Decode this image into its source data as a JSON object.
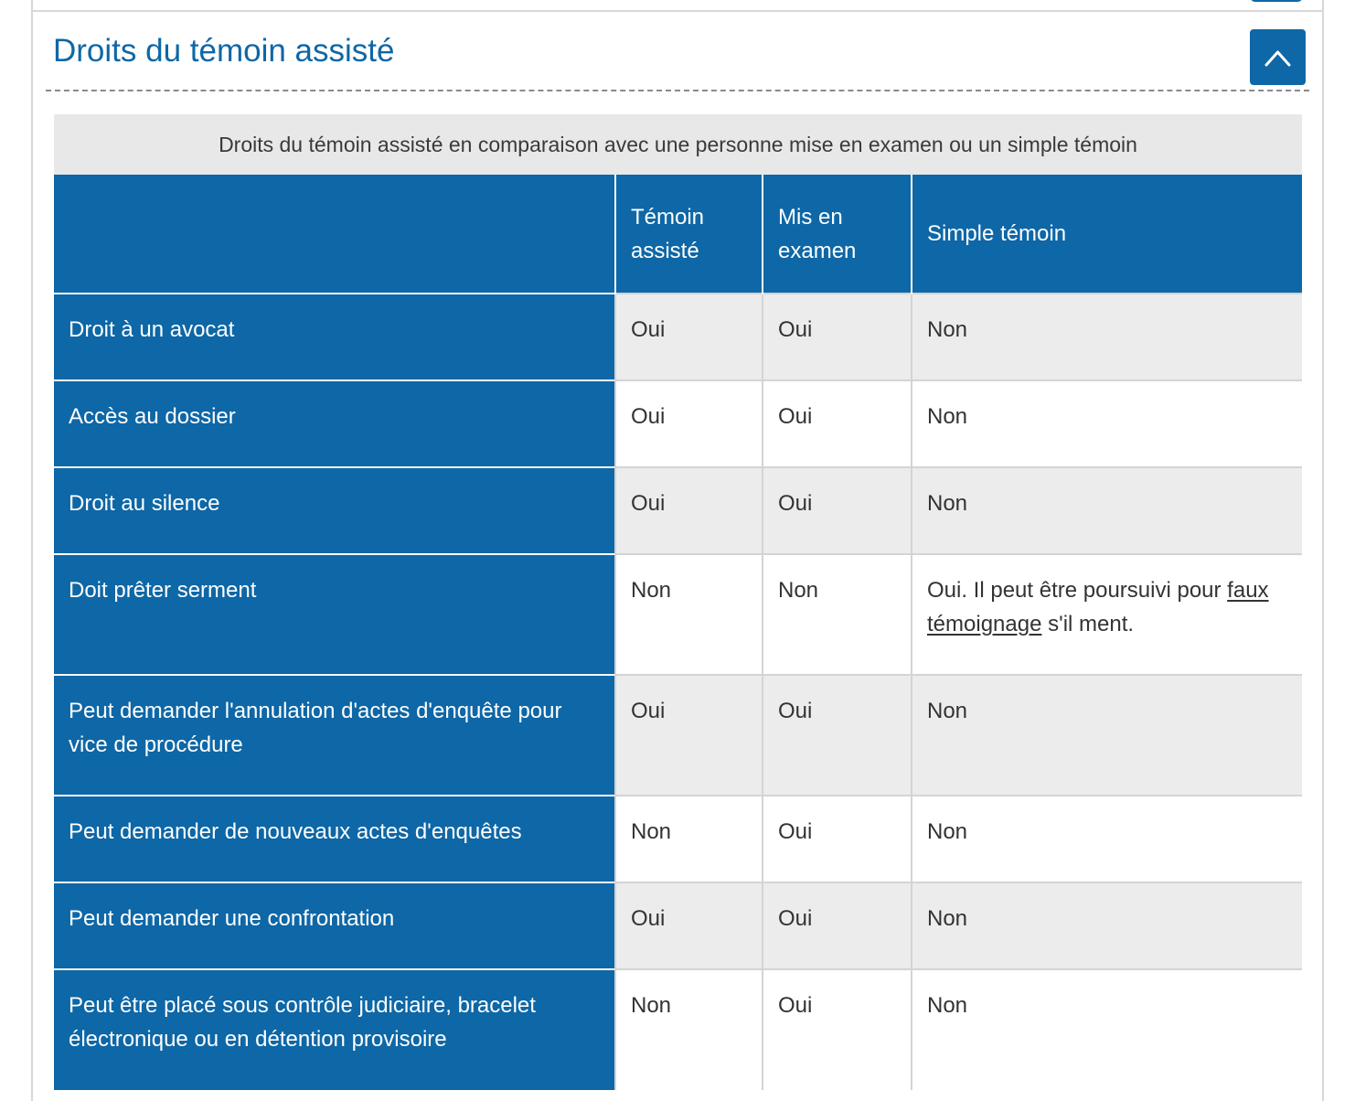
{
  "section": {
    "title": "Droits du témoin assisté",
    "collapse_icon": "chevron-up-icon",
    "accent_color": "#0e67a6"
  },
  "table": {
    "caption": "Droits du témoin assisté en comparaison avec une personne mise en examen ou un simple témoin",
    "columns": [
      "",
      "Témoin assisté",
      "Mis en examen",
      "Simple témoin"
    ],
    "rows": [
      {
        "label": "Droit à un avocat",
        "values": [
          "Oui",
          "Oui",
          "Non"
        ]
      },
      {
        "label": "Accès au dossier",
        "values": [
          "Oui",
          "Oui",
          "Non"
        ]
      },
      {
        "label": "Droit au silence",
        "values": [
          "Oui",
          "Oui",
          "Non"
        ]
      },
      {
        "label": "Doit prêter serment",
        "values": [
          "Non",
          "Non",
          "Oui. Il peut être poursuivi pour faux témoignage s'il ment."
        ],
        "simple_parts": {
          "before": "Oui. Il peut être poursuivi pour ",
          "link": "faux témoignage",
          "after": " s'il ment."
        }
      },
      {
        "label": "Peut demander l'annulation d'actes d'enquête pour vice de procédure",
        "values": [
          "Oui",
          "Oui",
          "Non"
        ]
      },
      {
        "label": "Peut demander de nouveaux actes d'enquêtes",
        "values": [
          "Non",
          "Oui",
          "Non"
        ]
      },
      {
        "label": "Peut demander une confrontation",
        "values": [
          "Oui",
          "Oui",
          "Non"
        ]
      },
      {
        "label": "Peut être placé sous contrôle judiciaire, bracelet électronique ou en détention provisoire",
        "values": [
          "Non",
          "Oui",
          "Non"
        ]
      }
    ]
  }
}
